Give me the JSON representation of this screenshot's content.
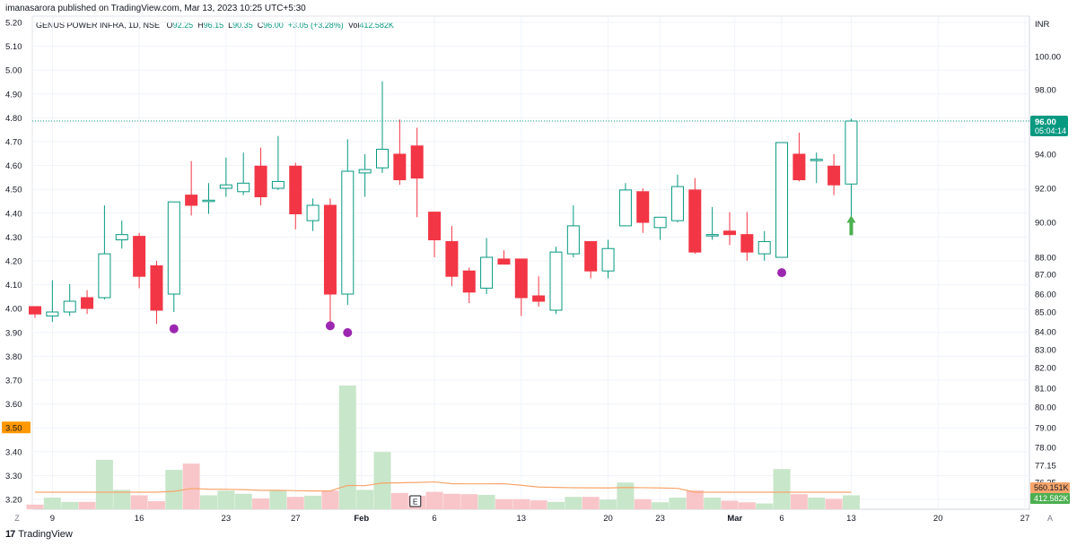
{
  "header": {
    "published": "imanasarora published on TradingView.com, Mar 13, 2023 10:25 UTC+5:30"
  },
  "legend": {
    "symbol": "GENUS POWER INFRA, 1D, NSE",
    "o_key": "O",
    "o_val": "92.25",
    "h_key": "H",
    "h_val": "96.15",
    "l_key": "L",
    "l_val": "90.35",
    "c_key": "C",
    "c_val": "96.00",
    "change": "+3.05 (+3.28%)",
    "vol_key": "Vol",
    "vol_val": "412.582K"
  },
  "footer": {
    "brand": "TradingView"
  },
  "colors": {
    "up": "#089981",
    "down": "#f23645",
    "up_volume": "#c8e6c9",
    "down_volume": "#f8c6c9",
    "ma": "#f7a56b",
    "signal_dot": "#9c27b0",
    "arrow": "#4caf50"
  },
  "chart_data": {
    "type": "candlestick",
    "currency_label": "INR",
    "left_axis_ticks": [
      "5.20",
      "5.10",
      "5.00",
      "4.90",
      "4.80",
      "4.70",
      "4.60",
      "4.50",
      "4.40",
      "4.30",
      "4.20",
      "4.10",
      "4.00",
      "3.90",
      "3.80",
      "3.70",
      "3.60",
      "3.50",
      "3.40",
      "3.30",
      "3.20"
    ],
    "left_badge": "3.50",
    "right_axis_ticks": [
      "100.00",
      "98.00",
      "96.00",
      "94.00",
      "92.00",
      "90.00",
      "88.00",
      "87.00",
      "86.00",
      "85.00",
      "84.00",
      "83.00",
      "82.00",
      "81.00",
      "80.00",
      "79.00",
      "78.00",
      "77.15",
      "76.25"
    ],
    "price_label": "96.00",
    "countdown": "05:04:14",
    "vol_ma_label": "560.151K",
    "vol_label": "412.582K",
    "x_ticks": [
      "9",
      "16",
      "23",
      "27",
      "Feb",
      "6",
      "13",
      "20",
      "23",
      "Mar",
      "6",
      "13",
      "20",
      "27"
    ],
    "corner_left": "Z",
    "corner_right": "A",
    "event_marker": "E",
    "candles": [
      {
        "d": "Jan 6",
        "o": 85.3,
        "h": 85.3,
        "l": 84.7,
        "c": 84.9,
        "v": 60
      },
      {
        "d": "Jan 9",
        "o": 84.8,
        "h": 86.7,
        "l": 84.5,
        "c": 85.0,
        "v": 150
      },
      {
        "d": "Jan 10",
        "o": 85.0,
        "h": 86.5,
        "l": 84.8,
        "c": 85.6,
        "v": 95
      },
      {
        "d": "Jan 11",
        "o": 85.8,
        "h": 86.2,
        "l": 84.9,
        "c": 85.2,
        "v": 95
      },
      {
        "d": "Jan 12",
        "o": 85.8,
        "h": 91.0,
        "l": 85.7,
        "c": 88.2,
        "v": 640
      },
      {
        "d": "Jan 13",
        "o": 89.0,
        "h": 90.1,
        "l": 88.5,
        "c": 89.3,
        "v": 250
      },
      {
        "d": "Jan 16",
        "o": 89.2,
        "h": 89.4,
        "l": 86.3,
        "c": 86.9,
        "v": 180
      },
      {
        "d": "Jan 17",
        "o": 87.5,
        "h": 87.8,
        "l": 84.4,
        "c": 85.1,
        "v": 105
      },
      {
        "d": "Jan 18",
        "o": 86.0,
        "h": 91.2,
        "l": 85.0,
        "c": 91.2,
        "v": 510
      },
      {
        "d": "Jan 19",
        "o": 91.6,
        "h": 93.6,
        "l": 90.4,
        "c": 91.0,
        "v": 590
      },
      {
        "d": "Jan 20",
        "o": 91.3,
        "h": 92.3,
        "l": 90.5,
        "c": 91.3,
        "v": 180
      },
      {
        "d": "Jan 23",
        "o": 92.0,
        "h": 93.8,
        "l": 91.5,
        "c": 92.2,
        "v": 240
      },
      {
        "d": "Jan 24",
        "o": 91.8,
        "h": 94.1,
        "l": 91.6,
        "c": 92.3,
        "v": 200
      },
      {
        "d": "Jan 25",
        "o": 93.3,
        "h": 94.4,
        "l": 91.0,
        "c": 91.5,
        "v": 140
      },
      {
        "d": "Jan 26",
        "o": 92.0,
        "h": 95.1,
        "l": 91.9,
        "c": 92.4,
        "v": 245
      },
      {
        "d": "Jan 27",
        "o": 93.3,
        "h": 93.5,
        "l": 89.6,
        "c": 90.5,
        "v": 160
      },
      {
        "d": "Jan 30",
        "o": 90.1,
        "h": 91.4,
        "l": 89.5,
        "c": 91.0,
        "v": 175
      },
      {
        "d": "Jan 31",
        "o": 91.0,
        "h": 91.4,
        "l": 84.4,
        "c": 86.0,
        "v": 240
      },
      {
        "d": "Feb 1",
        "o": 86.0,
        "h": 94.9,
        "l": 85.4,
        "c": 93.0,
        "v": 1600
      },
      {
        "d": "Feb 2",
        "o": 92.9,
        "h": 94.0,
        "l": 91.5,
        "c": 93.1,
        "v": 250
      },
      {
        "d": "Feb 3",
        "o": 93.2,
        "h": 98.5,
        "l": 92.9,
        "c": 94.3,
        "v": 740
      },
      {
        "d": "Feb 4",
        "o": 94.0,
        "h": 96.1,
        "l": 92.2,
        "c": 92.5,
        "v": 210
      },
      {
        "d": "Feb 5",
        "o": 94.5,
        "h": 95.6,
        "l": 90.3,
        "c": 92.6,
        "v": 175
      },
      {
        "d": "Feb 6",
        "o": 90.6,
        "h": 90.6,
        "l": 88.0,
        "c": 89.0,
        "v": 225
      },
      {
        "d": "Feb 7",
        "o": 88.9,
        "h": 89.8,
        "l": 86.4,
        "c": 86.9,
        "v": 200
      },
      {
        "d": "Feb 8",
        "o": 87.2,
        "h": 87.4,
        "l": 85.5,
        "c": 86.1,
        "v": 195
      },
      {
        "d": "Feb 9",
        "o": 86.3,
        "h": 89.1,
        "l": 86.0,
        "c": 88.0,
        "v": 185
      },
      {
        "d": "Feb 10",
        "o": 87.9,
        "h": 88.4,
        "l": 87.6,
        "c": 87.6,
        "v": 130
      },
      {
        "d": "Feb 13",
        "o": 87.9,
        "h": 87.9,
        "l": 84.8,
        "c": 85.8,
        "v": 130
      },
      {
        "d": "Feb 14",
        "o": 85.9,
        "h": 86.9,
        "l": 85.3,
        "c": 85.6,
        "v": 115
      },
      {
        "d": "Feb 15",
        "o": 85.1,
        "h": 88.6,
        "l": 84.9,
        "c": 88.3,
        "v": 95
      },
      {
        "d": "Feb 16",
        "o": 88.2,
        "h": 91.0,
        "l": 88.0,
        "c": 89.8,
        "v": 160
      },
      {
        "d": "Feb 17",
        "o": 88.9,
        "h": 88.9,
        "l": 86.8,
        "c": 87.2,
        "v": 160
      },
      {
        "d": "Feb 20",
        "o": 87.2,
        "h": 89.0,
        "l": 86.8,
        "c": 88.5,
        "v": 125
      },
      {
        "d": "Feb 21",
        "o": 89.8,
        "h": 92.3,
        "l": 89.8,
        "c": 91.9,
        "v": 345
      },
      {
        "d": "Feb 22",
        "o": 91.8,
        "h": 92.0,
        "l": 89.4,
        "c": 90.0,
        "v": 130
      },
      {
        "d": "Feb 23",
        "o": 89.7,
        "h": 90.2,
        "l": 89.0,
        "c": 90.3,
        "v": 90
      },
      {
        "d": "Feb 24",
        "o": 90.1,
        "h": 92.8,
        "l": 90.0,
        "c": 92.1,
        "v": 150
      },
      {
        "d": "Feb 27",
        "o": 91.9,
        "h": 92.6,
        "l": 88.2,
        "c": 88.3,
        "v": 245
      },
      {
        "d": "Feb 28",
        "o": 89.3,
        "h": 90.9,
        "l": 89.0,
        "c": 89.3,
        "v": 150
      },
      {
        "d": "Mar 1",
        "o": 89.5,
        "h": 90.6,
        "l": 88.7,
        "c": 89.3,
        "v": 110
      },
      {
        "d": "Mar 2",
        "o": 89.3,
        "h": 90.6,
        "l": 87.8,
        "c": 88.3,
        "v": 90
      },
      {
        "d": "Mar 3",
        "o": 88.2,
        "h": 89.5,
        "l": 87.8,
        "c": 88.9,
        "v": 75
      },
      {
        "d": "Mar 6",
        "o": 88.0,
        "h": 94.7,
        "l": 88.0,
        "c": 94.7,
        "v": 520
      },
      {
        "d": "Mar 7",
        "o": 94.0,
        "h": 95.3,
        "l": 92.4,
        "c": 92.5,
        "v": 195
      },
      {
        "d": "Mar 8",
        "o": 93.7,
        "h": 94.1,
        "l": 92.3,
        "c": 93.7,
        "v": 150
      },
      {
        "d": "Mar 9",
        "o": 93.3,
        "h": 94.0,
        "l": 91.6,
        "c": 92.2,
        "v": 135
      },
      {
        "d": "Mar 13",
        "o": 92.25,
        "h": 96.15,
        "l": 90.35,
        "c": 96.0,
        "v": 180
      }
    ],
    "signal_dots": [
      {
        "d": "Jan 18",
        "price": 84.15
      },
      {
        "d": "Jan 31",
        "price": 84.3
      },
      {
        "d": "Feb 1",
        "price": 83.95
      },
      {
        "d": "Mar 6",
        "price": 87.1
      }
    ],
    "up_arrow": {
      "d": "Mar 13"
    }
  }
}
